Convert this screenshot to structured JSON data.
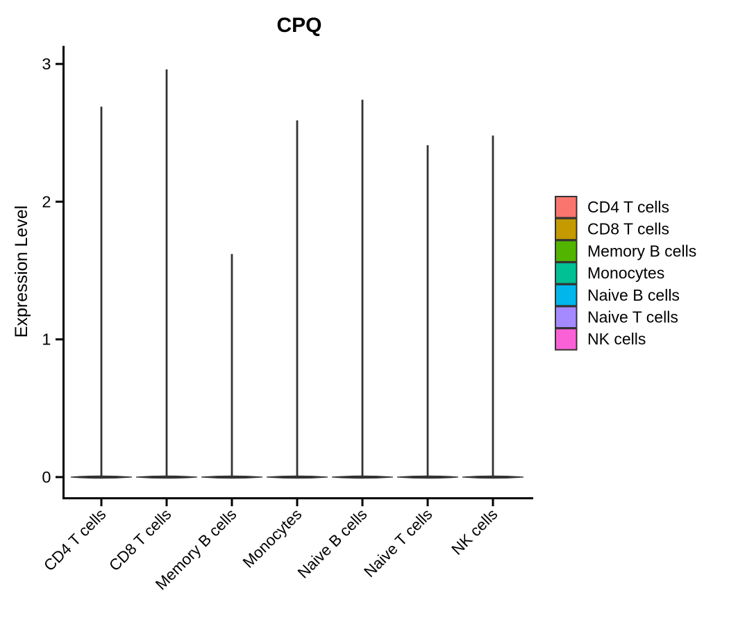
{
  "chart_data": {
    "type": "violin",
    "title": "CPQ",
    "xlabel": "",
    "ylabel": "Expression Level",
    "categories": [
      "CD4 T cells",
      "CD8 T cells",
      "Memory B cells",
      "Monocytes",
      "Naive B cells",
      "Naive T cells",
      "NK cells"
    ],
    "series": [
      {
        "category": "CD4 T cells",
        "max_expression": 2.69,
        "baseline": 0,
        "color": "#F8766D"
      },
      {
        "category": "CD8 T cells",
        "max_expression": 2.96,
        "baseline": 0,
        "color": "#C49A00"
      },
      {
        "category": "Memory B cells",
        "max_expression": 1.62,
        "baseline": 0,
        "color": "#53B400"
      },
      {
        "category": "Monocytes",
        "max_expression": 2.59,
        "baseline": 0,
        "color": "#00C094"
      },
      {
        "category": "Naive B cells",
        "max_expression": 2.74,
        "baseline": 0,
        "color": "#00B6EB"
      },
      {
        "category": "Naive T cells",
        "max_expression": 2.41,
        "baseline": 0,
        "color": "#A58AFF"
      },
      {
        "category": "NK cells",
        "max_expression": 2.48,
        "baseline": 0,
        "color": "#FB61D7"
      }
    ],
    "y_ticks": [
      0,
      1,
      2,
      3
    ],
    "ylim": [
      -0.15,
      3.14
    ],
    "grid": false,
    "legend_position": "right",
    "x_tick_rotation": 45,
    "violin_outline_color": "#333333",
    "axis_color": "#000000",
    "text_color": "#000000",
    "legend_key_border_color": "#333333",
    "violin_relative_width": 0.94,
    "shape_note": "violins collapsed to flat lens at 0 with thin vertical spike to max"
  }
}
